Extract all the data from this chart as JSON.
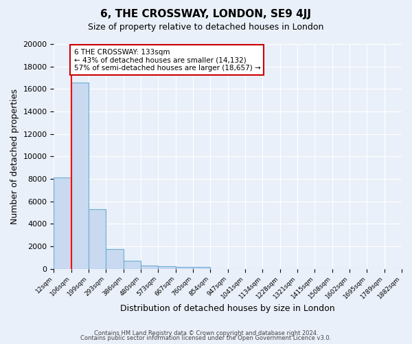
{
  "title": "6, THE CROSSWAY, LONDON, SE9 4JJ",
  "subtitle": "Size of property relative to detached houses in London",
  "xlabel": "Distribution of detached houses by size in London",
  "ylabel": "Number of detached properties",
  "bar_color": "#c8d9f0",
  "bar_edge_color": "#6baed6",
  "bar_heights": [
    8100,
    16600,
    5300,
    1750,
    700,
    300,
    200,
    150,
    130,
    0,
    0,
    0,
    0,
    0,
    0,
    0,
    0,
    0,
    0,
    0
  ],
  "tick_labels": [
    "12sqm",
    "106sqm",
    "199sqm",
    "293sqm",
    "386sqm",
    "480sqm",
    "573sqm",
    "667sqm",
    "760sqm",
    "854sqm",
    "947sqm",
    "1041sqm",
    "1134sqm",
    "1228sqm",
    "1321sqm",
    "1415sqm",
    "1508sqm",
    "1602sqm",
    "1695sqm",
    "1789sqm",
    "1882sqm"
  ],
  "ylim": [
    0,
    20000
  ],
  "yticks": [
    0,
    2000,
    4000,
    6000,
    8000,
    10000,
    12000,
    14000,
    16000,
    18000,
    20000
  ],
  "red_line_x": 1,
  "annotation_title": "6 THE CROSSWAY: 133sqm",
  "annotation_line1": "← 43% of detached houses are smaller (14,132)",
  "annotation_line2": "57% of semi-detached houses are larger (18,657) →",
  "background_color": "#eaf0f9",
  "grid_color": "#ffffff",
  "footer1": "Contains HM Land Registry data © Crown copyright and database right 2024.",
  "footer2": "Contains public sector information licensed under the Open Government Licence v3.0."
}
